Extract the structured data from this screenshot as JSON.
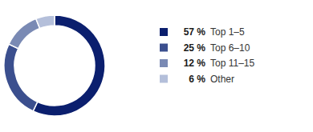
{
  "chart_data": {
    "type": "pie",
    "categories": [
      "Top 1–5",
      "Top 6–10",
      "Top 11–15",
      "Other"
    ],
    "values": [
      57,
      25,
      12,
      6
    ],
    "value_labels": [
      "57 %",
      "25 %",
      "12 %",
      "6 %"
    ],
    "colors": [
      "#0b1f6e",
      "#3b4f8e",
      "#7a8ab4",
      "#b4bfda"
    ],
    "legend": "right"
  }
}
